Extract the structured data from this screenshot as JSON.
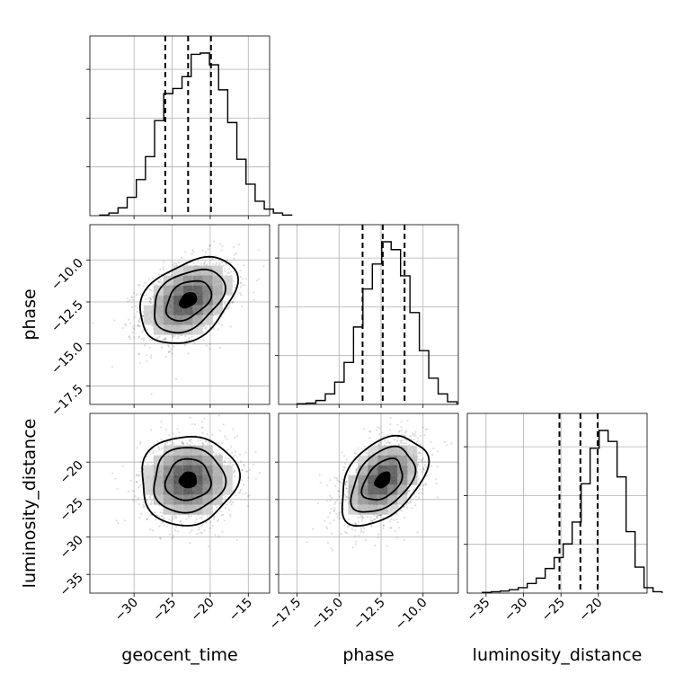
{
  "chart_data": {
    "type": "corner",
    "parameters": [
      "geocent_time",
      "phase",
      "luminosity_distance"
    ],
    "axis_labels": {
      "x": [
        "geocent_time",
        "phase",
        "luminosity_distance"
      ],
      "y": [
        "phase",
        "luminosity_distance"
      ]
    },
    "ranges": {
      "geocent_time": [
        -35.8,
        -12.2
      ],
      "phase": [
        -18.6,
        -7.9
      ],
      "luminosity_distance": [
        -37.5,
        -13.5
      ]
    },
    "ticks": {
      "geocent_time": {
        "values": [
          -30,
          -25,
          -20,
          -15
        ],
        "labels": [
          "−30",
          "−25",
          "−20",
          "−15"
        ]
      },
      "phase": {
        "values": [
          -17.5,
          -15.0,
          -12.5,
          -10.0
        ],
        "labels": [
          "−17.5",
          "−15.0",
          "−12.5",
          "−10.0"
        ]
      },
      "luminosity_distance": {
        "values": [
          -35,
          -30,
          -25,
          -20
        ],
        "labels": [
          "−35",
          "−30",
          "−25",
          "−20"
        ]
      }
    },
    "grid": true,
    "marginals": [
      {
        "parameter": "geocent_time",
        "bin_start": -34.5,
        "bin_width": 1.2,
        "counts": [
          1,
          4,
          12,
          28,
          55,
          90,
          145,
          186,
          194,
          212,
          246,
          248,
          230,
          192,
          142,
          86,
          48,
          22,
          10,
          4,
          1
        ],
        "quantiles": [
          -25.9,
          -22.9,
          -19.9
        ]
      },
      {
        "parameter": "phase",
        "bin_start": -17.5,
        "bin_width": 0.56,
        "counts": [
          1,
          2,
          6,
          16,
          34,
          64,
          118,
          176,
          214,
          248,
          236,
          196,
          140,
          82,
          40,
          16,
          4
        ],
        "quantiles": [
          -13.6,
          -12.4,
          -11.1
        ]
      },
      {
        "parameter": "luminosity_distance",
        "bin_start": -35.5,
        "bin_width": 1.2,
        "counts": [
          1,
          2,
          3,
          5,
          8,
          14,
          22,
          36,
          52,
          72,
          104,
          160,
          212,
          238,
          222,
          170,
          90,
          38,
          8,
          2
        ],
        "quantiles": [
          -25.2,
          -22.4,
          -20.1
        ]
      }
    ],
    "joint": [
      {
        "x": "geocent_time",
        "y": "phase",
        "center": [
          -22.9,
          -12.4
        ],
        "sigma": [
          3.1,
          1.25
        ],
        "rho": 0.38
      },
      {
        "x": "geocent_time",
        "y": "luminosity_distance",
        "center": [
          -22.9,
          -22.4
        ],
        "sigma": [
          3.1,
          2.9
        ],
        "rho": 0.05
      },
      {
        "x": "phase",
        "y": "luminosity_distance",
        "center": [
          -12.4,
          -22.4
        ],
        "sigma": [
          1.25,
          2.9
        ],
        "rho": 0.42
      }
    ]
  }
}
